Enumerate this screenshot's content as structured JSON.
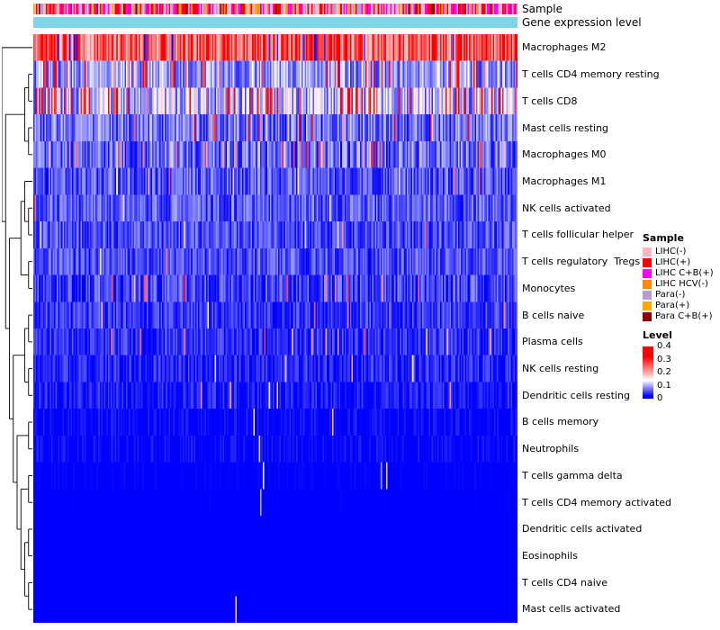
{
  "annotations": {
    "sample_label": "Sample",
    "gene_label": "Gene expression level",
    "gene_bar_color": "#7DD6E8"
  },
  "chart_data": {
    "type": "heatmap",
    "n_samples": 350,
    "value_range": [
      0,
      0.4
    ],
    "colormap": {
      "low": "#0000FF",
      "mid": "#FFFFFF",
      "high": "#FF0000",
      "blue_sat": 0.02,
      "white_point": 0.14,
      "red_sat": 0.32
    },
    "rows": [
      {
        "label": "Macrophages M2",
        "mean": 0.26,
        "spread": 0.09,
        "spike_prob": 0.03,
        "spike_value": 0.38,
        "dip_prob": 0.05
      },
      {
        "label": "T cells CD4 memory resting",
        "mean": 0.09,
        "spread": 0.05,
        "spike_prob": 0.1,
        "spike_value": 0.3,
        "dip_prob": 0
      },
      {
        "label": "T cells CD8",
        "mean": 0.11,
        "spread": 0.07,
        "spike_prob": 0.18,
        "spike_value": 0.33,
        "dip_prob": 0
      },
      {
        "label": "Mast cells resting",
        "mean": 0.07,
        "spread": 0.05,
        "spike_prob": 0.05,
        "spike_value": 0.3,
        "dip_prob": 0
      },
      {
        "label": "Macrophages M0",
        "mean": 0.07,
        "spread": 0.05,
        "spike_prob": 0.06,
        "spike_value": 0.25,
        "dip_prob": 0
      },
      {
        "label": "Macrophages M1",
        "mean": 0.06,
        "spread": 0.04,
        "spike_prob": 0.02,
        "spike_value": 0.2,
        "dip_prob": 0
      },
      {
        "label": "NK cells activated",
        "mean": 0.06,
        "spread": 0.04,
        "spike_prob": 0.02,
        "spike_value": 0.2,
        "dip_prob": 0
      },
      {
        "label": "T cells follicular helper",
        "mean": 0.055,
        "spread": 0.035,
        "spike_prob": 0.015,
        "spike_value": 0.2,
        "dip_prob": 0
      },
      {
        "label": "T cells regulatory  Tregs",
        "mean": 0.055,
        "spread": 0.035,
        "spike_prob": 0.01,
        "spike_value": 0.2,
        "dip_prob": 0
      },
      {
        "label": "Monocytes",
        "mean": 0.05,
        "spread": 0.04,
        "spike_prob": 0.03,
        "spike_value": 0.25,
        "dip_prob": 0
      },
      {
        "label": "B cells naive",
        "mean": 0.045,
        "spread": 0.03,
        "spike_prob": 0.01,
        "spike_value": 0.2,
        "dip_prob": 0
      },
      {
        "label": "Plasma cells",
        "mean": 0.04,
        "spread": 0.03,
        "spike_prob": 0.02,
        "spike_value": 0.22,
        "dip_prob": 0
      },
      {
        "label": "NK cells resting",
        "mean": 0.035,
        "spread": 0.03,
        "spike_prob": 0.01,
        "spike_value": 0.18,
        "dip_prob": 0
      },
      {
        "label": "Dendritic cells resting",
        "mean": 0.03,
        "spread": 0.025,
        "spike_prob": 0.01,
        "spike_value": 0.18,
        "dip_prob": 0
      },
      {
        "label": "B cells memory",
        "mean": 0.02,
        "spread": 0.02,
        "spike_prob": 0.008,
        "spike_value": 0.15,
        "dip_prob": 0
      },
      {
        "label": "Neutrophils",
        "mean": 0.02,
        "spread": 0.02,
        "spike_prob": 0.008,
        "spike_value": 0.15,
        "dip_prob": 0
      },
      {
        "label": "T cells gamma delta",
        "mean": 0.012,
        "spread": 0.015,
        "spike_prob": 0.005,
        "spike_value": 0.14,
        "dip_prob": 0
      },
      {
        "label": "T cells CD4 memory activated",
        "mean": 0.01,
        "spread": 0.012,
        "spike_prob": 0.004,
        "spike_value": 0.12,
        "dip_prob": 0
      },
      {
        "label": "Dendritic cells activated",
        "mean": 0.008,
        "spread": 0.01,
        "spike_prob": 0.003,
        "spike_value": 0.12,
        "dip_prob": 0
      },
      {
        "label": "Eosinophils",
        "mean": 0.005,
        "spread": 0.008,
        "spike_prob": 0.002,
        "spike_value": 0.12,
        "dip_prob": 0
      },
      {
        "label": "T cells CD4 naive",
        "mean": 0.005,
        "spread": 0.008,
        "spike_prob": 0.002,
        "spike_value": 0.12,
        "dip_prob": 0
      },
      {
        "label": "Mast cells activated",
        "mean": 0.004,
        "spread": 0.006,
        "spike_prob": 0.004,
        "spike_value": 0.2,
        "dip_prob": 0
      }
    ],
    "row_dendrogram": [
      0,
      [
        [
          [
            1,
            2
          ],
          [
            3,
            4
          ]
        ],
        [
          [
            [
              5,
              [
                6,
                7
              ]
            ],
            [
              8,
              9
            ]
          ],
          [
            [
              [
                10,
                11
              ],
              [
                12,
                13
              ]
            ],
            [
              [
                14,
                15
              ],
              [
                [
                  16,
                  17
                ],
                [
                  [
                    18,
                    19
                  ],
                  [
                    20,
                    21
                  ]
                ]
              ]
            ]
          ]
        ]
      ]
    ],
    "column_annotation": {
      "name": "Sample",
      "classes": [
        {
          "label": "LIHC(-)",
          "color": "#FFB6C1",
          "weight": 0.27
        },
        {
          "label": "LIHC(+)",
          "color": "#FF0000",
          "weight": 0.25
        },
        {
          "label": "LIHC C+B(+)",
          "color": "#FF00FF",
          "weight": 0.2
        },
        {
          "label": "LIHC HCV(-)",
          "color": "#FF8A00",
          "weight": 0.05
        },
        {
          "label": "Para(-)",
          "color": "#B39CD9",
          "weight": 0.12
        },
        {
          "label": "Para(+)",
          "color": "#FFA800",
          "weight": 0.06
        },
        {
          "label": "Para C+B(+)",
          "color": "#8B0000",
          "weight": 0.05
        }
      ]
    },
    "legends": {
      "sample": {
        "title": "Sample"
      },
      "level": {
        "title": "Level",
        "ticks": [
          "0.4",
          "0.3",
          "0.2",
          "0.1",
          "0"
        ]
      }
    }
  }
}
